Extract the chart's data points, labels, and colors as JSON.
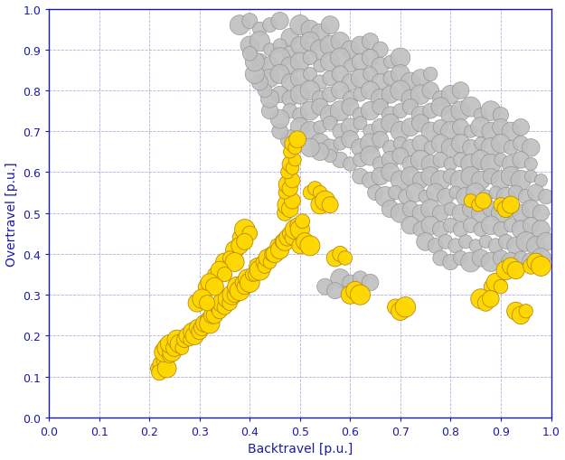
{
  "xlabel": "Backtravel [p.u.]",
  "ylabel": "Overtravel [p.u.]",
  "xlim": [
    0.0,
    1.0
  ],
  "ylim": [
    0.0,
    1.0
  ],
  "xticks": [
    0.0,
    0.1,
    0.2,
    0.3,
    0.4,
    0.5,
    0.6,
    0.7,
    0.8,
    0.9,
    1.0
  ],
  "yticks": [
    0.0,
    0.1,
    0.2,
    0.3,
    0.4,
    0.5,
    0.6,
    0.7,
    0.8,
    0.9,
    1.0
  ],
  "gray_color": "#c0c0c0",
  "yellow_color": "#FFD700",
  "gray_edge": "#909090",
  "yellow_edge": "#b8860b",
  "background": "#ffffff",
  "grid_color": "#9090cc",
  "axis_color": "#1a1aaa",
  "gray_points": [
    [
      0.38,
      0.96
    ],
    [
      0.4,
      0.97
    ],
    [
      0.42,
      0.95
    ],
    [
      0.44,
      0.96
    ],
    [
      0.46,
      0.97
    ],
    [
      0.48,
      0.93
    ],
    [
      0.5,
      0.96
    ],
    [
      0.52,
      0.95
    ],
    [
      0.54,
      0.94
    ],
    [
      0.56,
      0.96
    ],
    [
      0.4,
      0.91
    ],
    [
      0.42,
      0.92
    ],
    [
      0.44,
      0.9
    ],
    [
      0.46,
      0.91
    ],
    [
      0.48,
      0.89
    ],
    [
      0.5,
      0.91
    ],
    [
      0.52,
      0.92
    ],
    [
      0.54,
      0.9
    ],
    [
      0.56,
      0.91
    ],
    [
      0.58,
      0.92
    ],
    [
      0.6,
      0.9
    ],
    [
      0.62,
      0.91
    ],
    [
      0.64,
      0.92
    ],
    [
      0.66,
      0.9
    ],
    [
      0.42,
      0.87
    ],
    [
      0.44,
      0.86
    ],
    [
      0.46,
      0.88
    ],
    [
      0.48,
      0.86
    ],
    [
      0.5,
      0.87
    ],
    [
      0.52,
      0.88
    ],
    [
      0.54,
      0.86
    ],
    [
      0.56,
      0.87
    ],
    [
      0.58,
      0.88
    ],
    [
      0.6,
      0.86
    ],
    [
      0.62,
      0.87
    ],
    [
      0.64,
      0.88
    ],
    [
      0.66,
      0.86
    ],
    [
      0.68,
      0.87
    ],
    [
      0.7,
      0.88
    ],
    [
      0.44,
      0.83
    ],
    [
      0.46,
      0.84
    ],
    [
      0.48,
      0.82
    ],
    [
      0.5,
      0.83
    ],
    [
      0.52,
      0.84
    ],
    [
      0.54,
      0.82
    ],
    [
      0.56,
      0.83
    ],
    [
      0.58,
      0.84
    ],
    [
      0.6,
      0.82
    ],
    [
      0.62,
      0.83
    ],
    [
      0.64,
      0.84
    ],
    [
      0.66,
      0.82
    ],
    [
      0.68,
      0.83
    ],
    [
      0.7,
      0.84
    ],
    [
      0.72,
      0.82
    ],
    [
      0.74,
      0.83
    ],
    [
      0.76,
      0.84
    ],
    [
      0.46,
      0.79
    ],
    [
      0.48,
      0.78
    ],
    [
      0.5,
      0.79
    ],
    [
      0.52,
      0.8
    ],
    [
      0.54,
      0.78
    ],
    [
      0.56,
      0.79
    ],
    [
      0.58,
      0.8
    ],
    [
      0.6,
      0.78
    ],
    [
      0.62,
      0.79
    ],
    [
      0.64,
      0.8
    ],
    [
      0.66,
      0.78
    ],
    [
      0.68,
      0.79
    ],
    [
      0.7,
      0.8
    ],
    [
      0.72,
      0.78
    ],
    [
      0.74,
      0.79
    ],
    [
      0.76,
      0.8
    ],
    [
      0.78,
      0.78
    ],
    [
      0.8,
      0.79
    ],
    [
      0.82,
      0.8
    ],
    [
      0.48,
      0.75
    ],
    [
      0.5,
      0.74
    ],
    [
      0.52,
      0.75
    ],
    [
      0.54,
      0.76
    ],
    [
      0.56,
      0.74
    ],
    [
      0.58,
      0.75
    ],
    [
      0.6,
      0.76
    ],
    [
      0.62,
      0.74
    ],
    [
      0.64,
      0.75
    ],
    [
      0.66,
      0.76
    ],
    [
      0.68,
      0.74
    ],
    [
      0.7,
      0.75
    ],
    [
      0.72,
      0.76
    ],
    [
      0.74,
      0.74
    ],
    [
      0.76,
      0.75
    ],
    [
      0.78,
      0.76
    ],
    [
      0.8,
      0.74
    ],
    [
      0.82,
      0.75
    ],
    [
      0.84,
      0.76
    ],
    [
      0.86,
      0.74
    ],
    [
      0.88,
      0.75
    ],
    [
      0.9,
      0.74
    ],
    [
      0.5,
      0.71
    ],
    [
      0.52,
      0.7
    ],
    [
      0.54,
      0.71
    ],
    [
      0.56,
      0.72
    ],
    [
      0.58,
      0.7
    ],
    [
      0.6,
      0.71
    ],
    [
      0.62,
      0.72
    ],
    [
      0.64,
      0.7
    ],
    [
      0.66,
      0.71
    ],
    [
      0.68,
      0.72
    ],
    [
      0.7,
      0.7
    ],
    [
      0.72,
      0.71
    ],
    [
      0.74,
      0.72
    ],
    [
      0.76,
      0.7
    ],
    [
      0.78,
      0.71
    ],
    [
      0.8,
      0.7
    ],
    [
      0.82,
      0.71
    ],
    [
      0.84,
      0.7
    ],
    [
      0.86,
      0.71
    ],
    [
      0.88,
      0.7
    ],
    [
      0.9,
      0.71
    ],
    [
      0.92,
      0.7
    ],
    [
      0.94,
      0.71
    ],
    [
      0.54,
      0.67
    ],
    [
      0.56,
      0.66
    ],
    [
      0.58,
      0.67
    ],
    [
      0.6,
      0.68
    ],
    [
      0.62,
      0.66
    ],
    [
      0.64,
      0.67
    ],
    [
      0.66,
      0.68
    ],
    [
      0.68,
      0.66
    ],
    [
      0.7,
      0.67
    ],
    [
      0.72,
      0.66
    ],
    [
      0.74,
      0.67
    ],
    [
      0.76,
      0.66
    ],
    [
      0.78,
      0.67
    ],
    [
      0.8,
      0.66
    ],
    [
      0.82,
      0.67
    ],
    [
      0.84,
      0.66
    ],
    [
      0.86,
      0.67
    ],
    [
      0.88,
      0.66
    ],
    [
      0.9,
      0.67
    ],
    [
      0.92,
      0.66
    ],
    [
      0.94,
      0.67
    ],
    [
      0.96,
      0.66
    ],
    [
      0.58,
      0.63
    ],
    [
      0.6,
      0.62
    ],
    [
      0.62,
      0.63
    ],
    [
      0.64,
      0.64
    ],
    [
      0.66,
      0.62
    ],
    [
      0.68,
      0.63
    ],
    [
      0.7,
      0.64
    ],
    [
      0.72,
      0.62
    ],
    [
      0.74,
      0.63
    ],
    [
      0.76,
      0.62
    ],
    [
      0.78,
      0.63
    ],
    [
      0.8,
      0.62
    ],
    [
      0.82,
      0.63
    ],
    [
      0.84,
      0.62
    ],
    [
      0.86,
      0.63
    ],
    [
      0.88,
      0.62
    ],
    [
      0.9,
      0.63
    ],
    [
      0.92,
      0.62
    ],
    [
      0.94,
      0.63
    ],
    [
      0.96,
      0.62
    ],
    [
      0.62,
      0.59
    ],
    [
      0.64,
      0.58
    ],
    [
      0.66,
      0.59
    ],
    [
      0.68,
      0.6
    ],
    [
      0.7,
      0.58
    ],
    [
      0.72,
      0.59
    ],
    [
      0.74,
      0.58
    ],
    [
      0.76,
      0.59
    ],
    [
      0.78,
      0.58
    ],
    [
      0.8,
      0.59
    ],
    [
      0.82,
      0.58
    ],
    [
      0.84,
      0.59
    ],
    [
      0.86,
      0.58
    ],
    [
      0.88,
      0.59
    ],
    [
      0.9,
      0.58
    ],
    [
      0.92,
      0.59
    ],
    [
      0.94,
      0.58
    ],
    [
      0.96,
      0.59
    ],
    [
      0.98,
      0.58
    ],
    [
      0.65,
      0.55
    ],
    [
      0.67,
      0.54
    ],
    [
      0.69,
      0.55
    ],
    [
      0.71,
      0.54
    ],
    [
      0.73,
      0.55
    ],
    [
      0.75,
      0.54
    ],
    [
      0.77,
      0.55
    ],
    [
      0.79,
      0.54
    ],
    [
      0.81,
      0.55
    ],
    [
      0.83,
      0.54
    ],
    [
      0.85,
      0.55
    ],
    [
      0.87,
      0.54
    ],
    [
      0.89,
      0.55
    ],
    [
      0.91,
      0.54
    ],
    [
      0.93,
      0.55
    ],
    [
      0.95,
      0.54
    ],
    [
      0.97,
      0.55
    ],
    [
      0.99,
      0.54
    ],
    [
      0.68,
      0.51
    ],
    [
      0.7,
      0.5
    ],
    [
      0.72,
      0.51
    ],
    [
      0.74,
      0.5
    ],
    [
      0.76,
      0.51
    ],
    [
      0.78,
      0.5
    ],
    [
      0.8,
      0.51
    ],
    [
      0.82,
      0.5
    ],
    [
      0.84,
      0.51
    ],
    [
      0.86,
      0.5
    ],
    [
      0.88,
      0.51
    ],
    [
      0.9,
      0.5
    ],
    [
      0.92,
      0.51
    ],
    [
      0.94,
      0.5
    ],
    [
      0.96,
      0.51
    ],
    [
      0.98,
      0.5
    ],
    [
      0.72,
      0.47
    ],
    [
      0.74,
      0.46
    ],
    [
      0.76,
      0.47
    ],
    [
      0.78,
      0.46
    ],
    [
      0.8,
      0.47
    ],
    [
      0.82,
      0.46
    ],
    [
      0.84,
      0.47
    ],
    [
      0.86,
      0.46
    ],
    [
      0.88,
      0.47
    ],
    [
      0.9,
      0.46
    ],
    [
      0.92,
      0.47
    ],
    [
      0.94,
      0.46
    ],
    [
      0.96,
      0.47
    ],
    [
      0.98,
      0.46
    ],
    [
      0.75,
      0.43
    ],
    [
      0.77,
      0.42
    ],
    [
      0.79,
      0.43
    ],
    [
      0.81,
      0.42
    ],
    [
      0.83,
      0.43
    ],
    [
      0.85,
      0.42
    ],
    [
      0.87,
      0.43
    ],
    [
      0.89,
      0.42
    ],
    [
      0.91,
      0.43
    ],
    [
      0.93,
      0.42
    ],
    [
      0.95,
      0.43
    ],
    [
      0.97,
      0.42
    ],
    [
      0.99,
      0.43
    ],
    [
      0.78,
      0.39
    ],
    [
      0.8,
      0.38
    ],
    [
      0.82,
      0.39
    ],
    [
      0.84,
      0.38
    ],
    [
      0.86,
      0.39
    ],
    [
      0.88,
      0.38
    ],
    [
      0.9,
      0.39
    ],
    [
      0.92,
      0.38
    ],
    [
      0.94,
      0.39
    ],
    [
      0.96,
      0.38
    ],
    [
      0.98,
      0.39
    ],
    [
      0.58,
      0.34
    ],
    [
      0.6,
      0.33
    ],
    [
      0.62,
      0.34
    ],
    [
      0.64,
      0.33
    ],
    [
      0.55,
      0.32
    ],
    [
      0.57,
      0.31
    ],
    [
      0.56,
      0.64
    ],
    [
      0.54,
      0.65
    ],
    [
      0.52,
      0.66
    ],
    [
      0.48,
      0.68
    ],
    [
      0.46,
      0.7
    ],
    [
      0.46,
      0.73
    ],
    [
      0.44,
      0.75
    ],
    [
      0.44,
      0.78
    ],
    [
      0.43,
      0.8
    ],
    [
      0.42,
      0.82
    ],
    [
      0.41,
      0.84
    ],
    [
      0.41,
      0.87
    ],
    [
      0.4,
      0.89
    ]
  ],
  "yellow_points": [
    [
      0.215,
      0.12
    ],
    [
      0.225,
      0.13
    ],
    [
      0.22,
      0.11
    ],
    [
      0.23,
      0.14
    ],
    [
      0.235,
      0.12
    ],
    [
      0.23,
      0.16
    ],
    [
      0.235,
      0.17
    ],
    [
      0.24,
      0.15
    ],
    [
      0.245,
      0.16
    ],
    [
      0.24,
      0.18
    ],
    [
      0.25,
      0.17
    ],
    [
      0.255,
      0.19
    ],
    [
      0.26,
      0.18
    ],
    [
      0.265,
      0.17
    ],
    [
      0.27,
      0.19
    ],
    [
      0.275,
      0.2
    ],
    [
      0.28,
      0.19
    ],
    [
      0.285,
      0.21
    ],
    [
      0.29,
      0.2
    ],
    [
      0.295,
      0.22
    ],
    [
      0.3,
      0.21
    ],
    [
      0.305,
      0.22
    ],
    [
      0.31,
      0.23
    ],
    [
      0.315,
      0.24
    ],
    [
      0.32,
      0.23
    ],
    [
      0.325,
      0.25
    ],
    [
      0.33,
      0.25
    ],
    [
      0.335,
      0.27
    ],
    [
      0.34,
      0.26
    ],
    [
      0.345,
      0.28
    ],
    [
      0.35,
      0.27
    ],
    [
      0.355,
      0.29
    ],
    [
      0.36,
      0.28
    ],
    [
      0.365,
      0.3
    ],
    [
      0.37,
      0.3
    ],
    [
      0.375,
      0.32
    ],
    [
      0.38,
      0.31
    ],
    [
      0.385,
      0.33
    ],
    [
      0.39,
      0.32
    ],
    [
      0.395,
      0.34
    ],
    [
      0.4,
      0.33
    ],
    [
      0.405,
      0.35
    ],
    [
      0.41,
      0.35
    ],
    [
      0.415,
      0.37
    ],
    [
      0.42,
      0.36
    ],
    [
      0.425,
      0.38
    ],
    [
      0.43,
      0.37
    ],
    [
      0.435,
      0.39
    ],
    [
      0.44,
      0.38
    ],
    [
      0.445,
      0.4
    ],
    [
      0.45,
      0.4
    ],
    [
      0.455,
      0.42
    ],
    [
      0.46,
      0.41
    ],
    [
      0.465,
      0.43
    ],
    [
      0.47,
      0.43
    ],
    [
      0.475,
      0.44
    ],
    [
      0.48,
      0.45
    ],
    [
      0.485,
      0.44
    ],
    [
      0.49,
      0.46
    ],
    [
      0.495,
      0.47
    ],
    [
      0.5,
      0.46
    ],
    [
      0.505,
      0.48
    ],
    [
      0.47,
      0.5
    ],
    [
      0.475,
      0.52
    ],
    [
      0.48,
      0.51
    ],
    [
      0.485,
      0.53
    ],
    [
      0.47,
      0.55
    ],
    [
      0.475,
      0.57
    ],
    [
      0.48,
      0.56
    ],
    [
      0.485,
      0.58
    ],
    [
      0.475,
      0.6
    ],
    [
      0.48,
      0.62
    ],
    [
      0.485,
      0.61
    ],
    [
      0.49,
      0.63
    ],
    [
      0.48,
      0.65
    ],
    [
      0.485,
      0.67
    ],
    [
      0.49,
      0.66
    ],
    [
      0.495,
      0.68
    ],
    [
      0.38,
      0.44
    ],
    [
      0.39,
      0.46
    ],
    [
      0.4,
      0.45
    ],
    [
      0.37,
      0.41
    ],
    [
      0.38,
      0.42
    ],
    [
      0.39,
      0.43
    ],
    [
      0.35,
      0.38
    ],
    [
      0.36,
      0.39
    ],
    [
      0.37,
      0.38
    ],
    [
      0.33,
      0.35
    ],
    [
      0.34,
      0.36
    ],
    [
      0.35,
      0.35
    ],
    [
      0.31,
      0.32
    ],
    [
      0.32,
      0.33
    ],
    [
      0.33,
      0.32
    ],
    [
      0.295,
      0.28
    ],
    [
      0.305,
      0.29
    ],
    [
      0.315,
      0.28
    ],
    [
      0.5,
      0.42
    ],
    [
      0.51,
      0.43
    ],
    [
      0.52,
      0.42
    ],
    [
      0.52,
      0.55
    ],
    [
      0.53,
      0.56
    ],
    [
      0.54,
      0.55
    ],
    [
      0.54,
      0.52
    ],
    [
      0.55,
      0.53
    ],
    [
      0.56,
      0.52
    ],
    [
      0.57,
      0.39
    ],
    [
      0.58,
      0.4
    ],
    [
      0.59,
      0.39
    ],
    [
      0.6,
      0.3
    ],
    [
      0.61,
      0.31
    ],
    [
      0.62,
      0.3
    ],
    [
      0.69,
      0.27
    ],
    [
      0.7,
      0.26
    ],
    [
      0.71,
      0.27
    ],
    [
      0.88,
      0.32
    ],
    [
      0.89,
      0.33
    ],
    [
      0.9,
      0.32
    ],
    [
      0.91,
      0.36
    ],
    [
      0.92,
      0.37
    ],
    [
      0.93,
      0.36
    ],
    [
      0.86,
      0.29
    ],
    [
      0.87,
      0.28
    ],
    [
      0.88,
      0.29
    ],
    [
      0.93,
      0.26
    ],
    [
      0.94,
      0.25
    ],
    [
      0.95,
      0.26
    ],
    [
      0.96,
      0.37
    ],
    [
      0.97,
      0.38
    ],
    [
      0.98,
      0.37
    ],
    [
      0.84,
      0.53
    ],
    [
      0.855,
      0.52
    ],
    [
      0.865,
      0.53
    ],
    [
      0.9,
      0.52
    ],
    [
      0.91,
      0.51
    ],
    [
      0.92,
      0.52
    ]
  ]
}
